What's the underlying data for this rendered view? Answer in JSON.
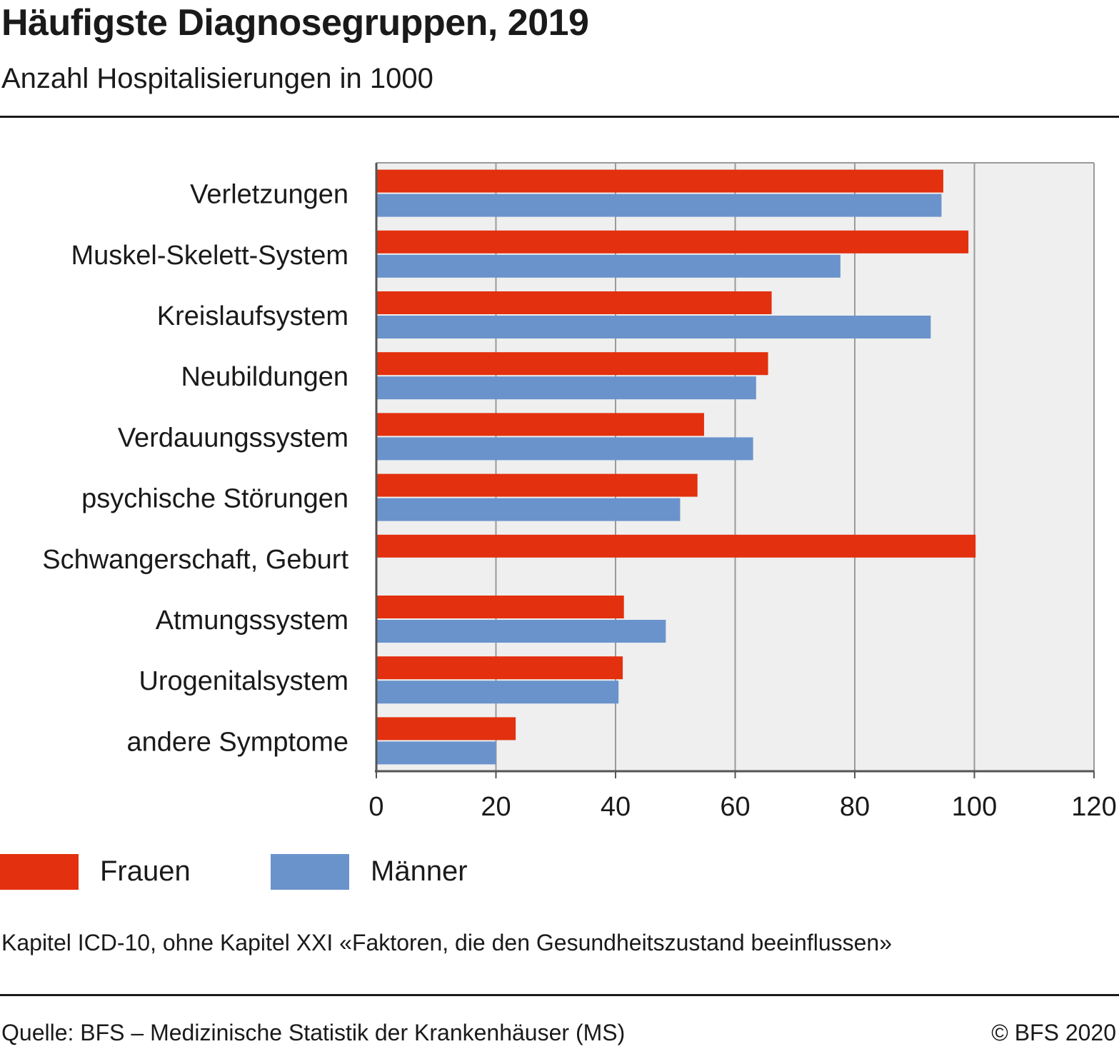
{
  "header": {
    "title": "Häufigste Diagnosegruppen, 2019",
    "subtitle": "Anzahl Hospitalisierungen in 1000"
  },
  "colors": {
    "frauen": "#e3300e",
    "maenner": "#6a93cc",
    "plot_background": "#efefef",
    "grid": "#9a9a9a"
  },
  "chart_data": {
    "type": "bar",
    "orientation": "horizontal",
    "title": "Häufigste Diagnosegruppen, 2019",
    "subtitle": "Anzahl Hospitalisierungen in 1000",
    "categories": [
      "Verletzungen",
      "Muskel-Skelett-System",
      "Kreislaufsystem",
      "Neubildungen",
      "Verdauungssystem",
      "psychische Störungen",
      "Schwangerschaft, Geburt",
      "Atmungssystem",
      "Urogenitalsystem",
      "andere Symptome"
    ],
    "series": [
      {
        "name": "Frauen",
        "color": "#e3300e",
        "values": [
          94.8,
          99.0,
          66.1,
          65.5,
          54.8,
          53.7,
          100.2,
          41.4,
          41.2,
          23.3
        ]
      },
      {
        "name": "Männer",
        "color": "#6a93cc",
        "values": [
          94.5,
          77.6,
          92.7,
          63.5,
          63.0,
          50.8,
          null,
          48.4,
          40.5,
          20.0
        ]
      }
    ],
    "xlim": [
      0,
      120
    ],
    "xticks": [
      0,
      20,
      40,
      60,
      80,
      100,
      120
    ],
    "xlabel": "",
    "ylabel": "",
    "grid": true,
    "legend_position": "bottom-left"
  },
  "legend": {
    "frauen_label": "Frauen",
    "maenner_label": "Männer"
  },
  "footnote": "Kapitel ICD-10, ohne Kapitel XXI «Faktoren, die den Gesundheitszustand beeinflussen»",
  "footer": {
    "source": "Quelle: BFS – Medizinische Statistik der Krankenhäuser (MS)",
    "copyright": "© BFS 2020"
  }
}
